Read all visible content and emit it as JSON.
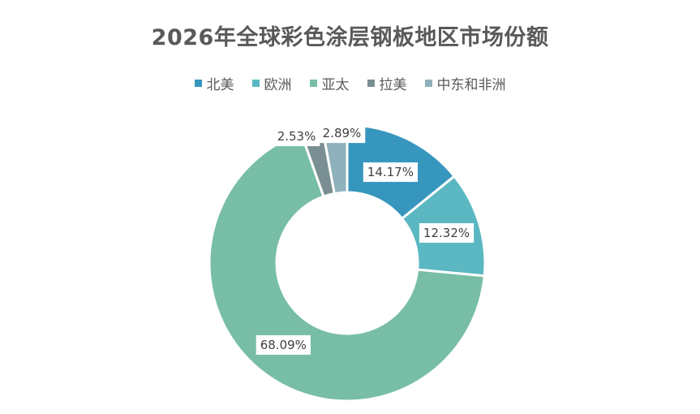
{
  "chart_data": {
    "type": "pie",
    "subtype": "donut",
    "title": "2026年全球彩色涂层钢板地区市场份额",
    "categories": [
      "北美",
      "欧洲",
      "亚太",
      "拉美",
      "中东和非洲"
    ],
    "values": [
      14.17,
      12.32,
      68.09,
      2.53,
      2.89
    ],
    "data_labels": [
      "14.17%",
      "12.32%",
      "68.09%",
      "2.53%",
      "2.89%"
    ],
    "colors": [
      "#3796BE",
      "#5BB8C2",
      "#78BEA6",
      "#7A8F93",
      "#8FB1BC"
    ],
    "legend_position": "top",
    "unit": "%"
  }
}
